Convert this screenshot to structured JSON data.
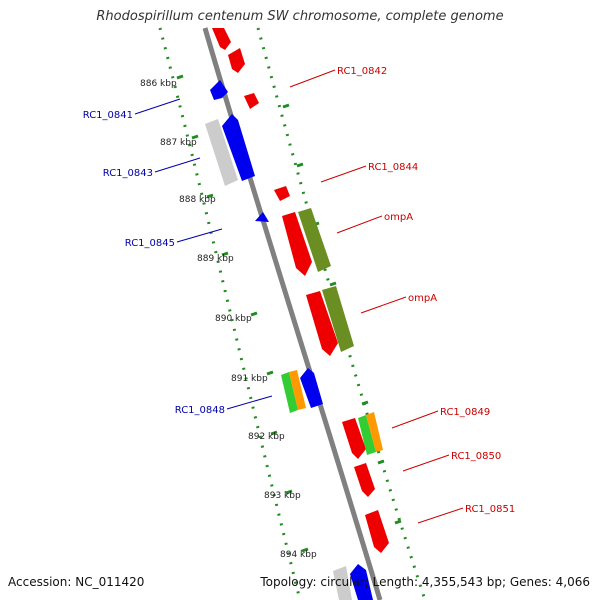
{
  "title": "Rhodospirillum centenum SW chromosome, complete genome",
  "footer": {
    "accession": "Accession: NC_011420",
    "topology": "Topology: circular; Length: 4,355,543 bp; Genes: 4,066"
  },
  "colors": {
    "forward_label": "#cc0000",
    "reverse_label": "#0000aa",
    "backbone": "#808080",
    "ticks": "#228B22"
  },
  "kbp_ticks": [
    "886 kbp",
    "887 kbp",
    "888 kbp",
    "889 kbp",
    "890 kbp",
    "891 kbp",
    "892 kbp",
    "893 kbp",
    "894 kbp"
  ],
  "gene_labels": {
    "rc1_0842": "RC1_0842",
    "rc1_0841": "RC1_0841",
    "rc1_0843": "RC1_0843",
    "rc1_0844": "RC1_0844",
    "rc1_0845": "RC1_0845",
    "ompa_1": "ompA",
    "ompa_2": "ompA",
    "rc1_0848": "RC1_0848",
    "rc1_0849": "RC1_0849",
    "rc1_0850": "RC1_0850",
    "rc1_0851": "RC1_0851"
  }
}
